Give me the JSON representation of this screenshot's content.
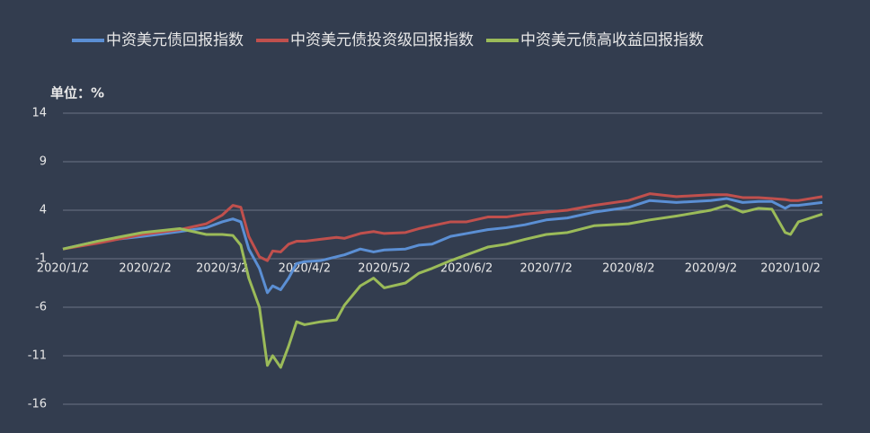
{
  "chart_data": {
    "type": "line",
    "unit_label": "单位：%",
    "x": [
      "2020/1/2",
      "2020/1/15",
      "2020/2/1",
      "2020/2/15",
      "2020/2/25",
      "2020/3/2",
      "2020/3/6",
      "2020/3/9",
      "2020/3/12",
      "2020/3/16",
      "2020/3/19",
      "2020/3/21",
      "2020/3/24",
      "2020/3/27",
      "2020/3/30",
      "2020/4/2",
      "2020/4/8",
      "2020/4/14",
      "2020/4/17",
      "2020/4/23",
      "2020/4/28",
      "2020/5/2",
      "2020/5/10",
      "2020/5/15",
      "2020/5/20",
      "2020/5/27",
      "2020/6/2",
      "2020/6/10",
      "2020/6/17",
      "2020/6/24",
      "2020/7/2",
      "2020/7/10",
      "2020/7/20",
      "2020/8/2",
      "2020/8/10",
      "2020/8/20",
      "2020/9/2",
      "2020/9/8",
      "2020/9/14",
      "2020/9/20",
      "2020/9/25",
      "2020/9/30",
      "2020/10/2",
      "2020/10/5",
      "2020/10/14"
    ],
    "series": [
      {
        "name": "中资美元债回报指数",
        "color": "#5b8fd4",
        "values": [
          0,
          0.8,
          1.3,
          1.8,
          2.2,
          2.8,
          3.1,
          2.8,
          0,
          -2,
          -4.5,
          -3.8,
          -4.2,
          -3,
          -1.5,
          -1.3,
          -1.2,
          -0.8,
          -0.6,
          0,
          -0.3,
          -0.1,
          0,
          0.4,
          0.5,
          1.3,
          1.6,
          2.0,
          2.2,
          2.5,
          3.0,
          3.2,
          3.8,
          4.3,
          5.0,
          4.8,
          5.0,
          5.2,
          4.8,
          4.9,
          4.9,
          4.2,
          4.5,
          4.5,
          4.8
        ]
      },
      {
        "name": "中资美元债投资级回报指数",
        "color": "#c0504d",
        "values": [
          0,
          0.6,
          1.5,
          2.0,
          2.6,
          3.5,
          4.5,
          4.3,
          1.3,
          -0.8,
          -1.2,
          -0.2,
          -0.3,
          0.5,
          0.8,
          0.8,
          1.0,
          1.2,
          1.1,
          1.6,
          1.8,
          1.6,
          1.7,
          2.1,
          2.4,
          2.8,
          2.8,
          3.3,
          3.3,
          3.6,
          3.8,
          4.0,
          4.5,
          5.0,
          5.7,
          5.4,
          5.6,
          5.6,
          5.3,
          5.3,
          5.2,
          5.1,
          5.0,
          5.0,
          5.4
        ]
      },
      {
        "name": "中资美元债高收益回报指数",
        "color": "#9bbb59",
        "values": [
          0,
          0.8,
          1.7,
          2.1,
          1.5,
          1.5,
          1.4,
          0.4,
          -3,
          -6,
          -12,
          -11,
          -12.2,
          -10,
          -7.5,
          -7.8,
          -7.5,
          -7.3,
          -5.8,
          -3.8,
          -3,
          -4,
          -3.5,
          -2.5,
          -2.0,
          -1.2,
          -0.6,
          0.2,
          0.5,
          1.0,
          1.5,
          1.7,
          2.4,
          2.6,
          3.0,
          3.4,
          4.0,
          4.5,
          3.8,
          4.2,
          4.1,
          1.7,
          1.5,
          2.8,
          3.6
        ]
      }
    ],
    "xlim": [
      "2020/1/2",
      "2020/10/14"
    ],
    "xticks": [
      "2020/1/2",
      "2020/2/2",
      "2020/3/2",
      "2020/4/2",
      "2020/5/2",
      "2020/6/2",
      "2020/7/2",
      "2020/8/2",
      "2020/9/2",
      "2020/10/2"
    ],
    "ylim": [
      -16,
      14
    ],
    "yticks": [
      -16,
      -11,
      -6,
      -1,
      4,
      9,
      14
    ],
    "grid": true,
    "legend": "top"
  }
}
